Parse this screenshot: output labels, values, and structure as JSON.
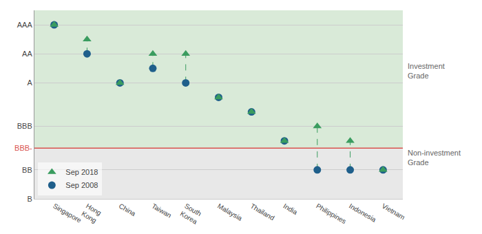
{
  "chart_data": {
    "type": "scatter",
    "categories": [
      "Singapore",
      "Hong\nKong",
      "China",
      "Taiwan",
      "South\nKorea",
      "Malaysia",
      "Thailand",
      "India",
      "Philippines",
      "Indonesia",
      "Vietnam"
    ],
    "series": [
      {
        "name": "Sep 2018",
        "color": "#3a9c5f",
        "marker": "triangle-up",
        "values": [
          7,
          6,
          3,
          5,
          5,
          2,
          1,
          -1,
          0,
          -1,
          -3
        ]
      },
      {
        "name": "Sep 2008",
        "color": "#1f5f8b",
        "marker": "circle",
        "values": [
          7,
          5,
          3,
          4,
          3,
          2,
          1,
          -1,
          -3,
          -3,
          -3
        ]
      }
    ],
    "ylim": [
      -5,
      8
    ],
    "yticks": [
      {
        "value": 7,
        "label": "AAA"
      },
      {
        "value": 5,
        "label": "AA"
      },
      {
        "value": 3,
        "label": "A"
      },
      {
        "value": 0,
        "label": "BBB"
      },
      {
        "value": -1.5,
        "label": "BBB-"
      },
      {
        "value": -3,
        "label": "BB"
      },
      {
        "value": -5,
        "label": "B"
      }
    ],
    "grid": true,
    "legend": "lower left",
    "reference_line": {
      "value": -1.5,
      "color": "#d9534f"
    },
    "annotations": [
      "Investment\nGrade",
      "Non-investment\nGrade"
    ]
  }
}
